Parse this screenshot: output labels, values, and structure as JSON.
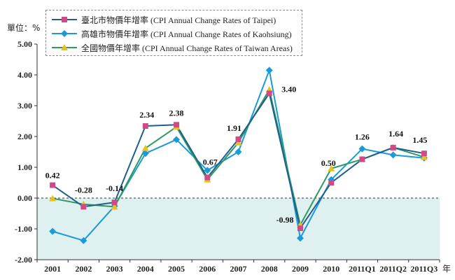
{
  "chart_data": {
    "type": "line",
    "ylabel": "單位：%",
    "xlabel": "年",
    "categories": [
      "2001",
      "2002",
      "2003",
      "2004",
      "2005",
      "2006",
      "2007",
      "2008",
      "2009",
      "2010",
      "2011Q1",
      "2011Q2",
      "2011Q3"
    ],
    "ylim": [
      -2.0,
      5.0
    ],
    "yticks": [
      "5.00",
      "4.00",
      "3.00",
      "2.00",
      "1.00",
      "0.00",
      "-1.00",
      "-2.00"
    ],
    "ytick_values": [
      5,
      4,
      3,
      2,
      1,
      0,
      -1,
      -2
    ],
    "shaded_region": "negative values below 0.00 (light teal)",
    "zero_line": "dashed",
    "legend_placement": "top-left",
    "series": [
      {
        "name": "臺北市物價年增率 (CPI Annual Change Rates of Taipei)",
        "color": "#1f5f8b",
        "marker": "square",
        "marker_color": "#d04a8a",
        "values": [
          0.42,
          -0.28,
          -0.14,
          2.34,
          2.38,
          0.67,
          1.91,
          3.4,
          -0.98,
          0.5,
          1.26,
          1.64,
          1.45
        ]
      },
      {
        "name": "高雄市物價年增率 (CPI Annual Change Rates of Kaohsiung)",
        "color": "#1a9ad6",
        "marker": "diamond",
        "marker_color": "#1a9ad6",
        "values": [
          -1.08,
          -1.38,
          -0.26,
          1.45,
          1.9,
          0.9,
          1.5,
          4.15,
          -1.3,
          0.6,
          1.6,
          1.4,
          1.3
        ]
      },
      {
        "name": "全國物價年增率 (CPI Annual Change Rates of Taiwan Areas)",
        "color": "#2e9a5f",
        "marker": "triangle",
        "marker_color": "#e8c21a",
        "values": [
          -0.01,
          -0.2,
          -0.28,
          1.62,
          2.31,
          0.6,
          1.8,
          3.52,
          -0.87,
          0.96,
          1.26,
          1.64,
          1.33
        ]
      }
    ],
    "data_labels": [
      {
        "category": "2001",
        "text": "0.42"
      },
      {
        "category": "2002",
        "text": "-0.28"
      },
      {
        "category": "2003",
        "text": "-0.14"
      },
      {
        "category": "2004",
        "text": "2.34"
      },
      {
        "category": "2005",
        "text": "2.38"
      },
      {
        "category": "2006",
        "text": "0.67"
      },
      {
        "category": "2007",
        "text": "1.91"
      },
      {
        "category": "2008",
        "text": "3.40"
      },
      {
        "category": "2009",
        "text": "-0.98"
      },
      {
        "category": "2010",
        "text": "0.50"
      },
      {
        "category": "2011Q1",
        "text": "1.26"
      },
      {
        "category": "2011Q2",
        "text": "1.64"
      },
      {
        "category": "2011Q3",
        "text": "1.45"
      }
    ]
  }
}
